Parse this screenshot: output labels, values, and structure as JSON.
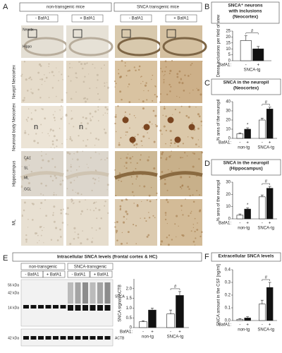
{
  "panel_A": {
    "letter": "A",
    "groups": [
      "non-transgenic mice",
      "SNCA transgenic mice"
    ],
    "columns": [
      "- BafA1",
      "+ BafA1",
      "- BafA1",
      "+ BafA1"
    ],
    "rows": [
      "Neurpil Neocortex",
      "Neuronal body Neocortex",
      "Hippocampus",
      "ML"
    ],
    "inset_labels": [
      "Neoctx",
      "Hippo",
      "n",
      "n",
      "CA1",
      "SL",
      "ML",
      "GCL"
    ]
  },
  "panel_E_blot": {
    "letter": "E",
    "title": "Intracellular SNCA levels (frontal cortex & HC)",
    "groups": [
      "non-transgenic",
      "SNCA-transgenic"
    ],
    "columns": [
      "- BafA1",
      "+ BafA1",
      "- BafA1",
      "+ BafA1"
    ],
    "markers": [
      "56 kDa",
      "42 kDa",
      "14 kDa",
      "42 kDa"
    ],
    "proteins": [
      "SNCA",
      "ACTB"
    ]
  },
  "charts": [
    {
      "letter": "B",
      "title": [
        "SNCA⁺ neurons",
        "with inclusions",
        "(Neocortex)"
      ],
      "ylabel": "Dense inclusions per field of view",
      "bafa1_label": "BafA1:",
      "categories": [
        "SNCA-tg"
      ],
      "series": [
        {
          "name": "-",
          "color": "#ffffff",
          "values": [
            17
          ],
          "errors": [
            4
          ]
        },
        {
          "name": "+",
          "color": "#111111",
          "values": [
            10
          ],
          "errors": [
            2
          ]
        }
      ],
      "ylim": [
        0,
        25
      ],
      "yticks": [
        0,
        5,
        10,
        15,
        20,
        25
      ],
      "significance": "#"
    },
    {
      "letter": "C",
      "title": [
        "SNCA in the neuropil",
        "(Neocortex)"
      ],
      "ylabel": "% area of the neuropil",
      "bafa1_label": "BafA1:",
      "categories": [
        "non-tg",
        "SNCA-tg"
      ],
      "series": [
        {
          "name": "-",
          "color": "#ffffff",
          "values": [
            5,
            20
          ],
          "errors": [
            1,
            2
          ]
        },
        {
          "name": "+",
          "color": "#111111",
          "values": [
            10,
            32
          ],
          "errors": [
            1.5,
            2
          ]
        }
      ],
      "ylim": [
        0,
        40
      ],
      "yticks": [
        0,
        10,
        20,
        30,
        40
      ],
      "significance": "#",
      "marker": "*"
    },
    {
      "letter": "D",
      "title": [
        "SNCA in the neuropil",
        "(Hippocampus)"
      ],
      "ylabel": "% area of the neuropil",
      "bafa1_label": "BafA1:",
      "categories": [
        "non-tg",
        "SNCA-tg"
      ],
      "series": [
        {
          "name": "-",
          "color": "#ffffff",
          "values": [
            3,
            18
          ],
          "errors": [
            1,
            1.5
          ]
        },
        {
          "name": "+",
          "color": "#111111",
          "values": [
            8,
            25
          ],
          "errors": [
            1,
            1.5
          ]
        }
      ],
      "ylim": [
        0,
        30
      ],
      "yticks": [
        0,
        10,
        20,
        30
      ],
      "significance": "#",
      "marker": "*"
    },
    {
      "ylabel": "SNCA signal/ ACTB",
      "bafa1_label": "BafA1:",
      "categories": [
        "non-tg",
        "SNCA-tg"
      ],
      "series": [
        {
          "name": "-",
          "color": "#ffffff",
          "values": [
            0.3,
            0.7
          ],
          "errors": [
            0.05,
            0.2
          ]
        },
        {
          "name": "+",
          "color": "#111111",
          "values": [
            0.9,
            1.65
          ],
          "errors": [
            0.1,
            0.2
          ]
        }
      ],
      "ylim": [
        0,
        2.5
      ],
      "yticks": [
        0,
        0.5,
        {
          "value": 1,
          "label": "1.0"
        },
        1.5,
        {
          "value": 2,
          "label": "2.0"
        }
      ],
      "significance": "#"
    },
    {
      "letter": "F",
      "title": [
        "Extracellular SNCA levels"
      ],
      "ylabel": "SNCA amount in the CSF [ng/ml]",
      "bafa1_label": "BafA1:",
      "categories": [
        "non-tg",
        "SNCA-tg"
      ],
      "series": [
        {
          "name": "-",
          "color": "#ffffff",
          "values": [
            0.01,
            0.13
          ],
          "errors": [
            0.005,
            0.03
          ]
        },
        {
          "name": "+",
          "color": "#111111",
          "values": [
            0.02,
            0.26
          ],
          "errors": [
            0.01,
            0.04
          ]
        }
      ],
      "ylim": [
        0,
        0.4
      ],
      "yticks": [
        {
          "value": 0,
          "label": "0.0"
        },
        0.1,
        0.2,
        0.3,
        0.4
      ],
      "significance": "#"
    }
  ]
}
